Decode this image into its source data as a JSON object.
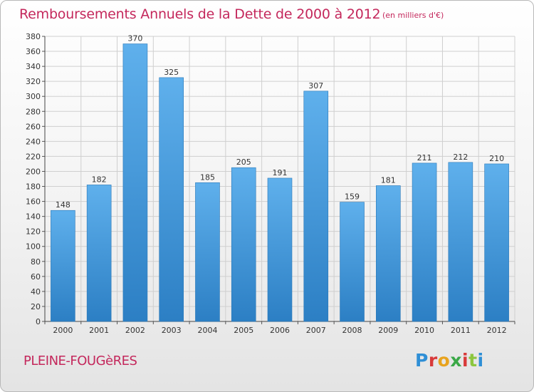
{
  "chart_data": {
    "type": "bar",
    "title": "Remboursements Annuels de la Dette de 2000 à 2012",
    "subtitle": "(en milliers d'€)",
    "categories": [
      "2000",
      "2001",
      "2002",
      "2003",
      "2004",
      "2005",
      "2006",
      "2007",
      "2008",
      "2009",
      "2010",
      "2011",
      "2012"
    ],
    "values": [
      148,
      182,
      370,
      325,
      185,
      205,
      191,
      307,
      159,
      181,
      211,
      212,
      210
    ],
    "ylim": [
      0,
      380
    ],
    "yticks": [
      0,
      20,
      40,
      60,
      80,
      100,
      120,
      140,
      160,
      180,
      200,
      220,
      240,
      260,
      280,
      300,
      320,
      340,
      360,
      380
    ],
    "grid": true,
    "bar_color": "#4a9de0"
  },
  "footer": {
    "commune": "PLEINE-FOUGèRES",
    "logo": [
      "P",
      "r",
      "o",
      "x",
      "i",
      "t",
      "i"
    ]
  }
}
